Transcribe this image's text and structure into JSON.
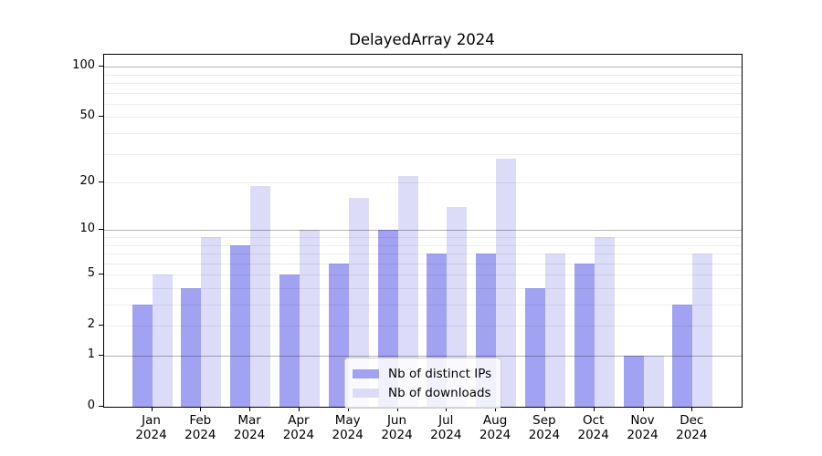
{
  "title": "DelayedArray 2024",
  "chart_data": {
    "type": "bar",
    "title": "DelayedArray 2024",
    "categories": [
      "Jan 2024",
      "Feb 2024",
      "Mar 2024",
      "Apr 2024",
      "May 2024",
      "Jun 2024",
      "Jul 2024",
      "Aug 2024",
      "Sep 2024",
      "Oct 2024",
      "Nov 2024",
      "Dec 2024"
    ],
    "series": [
      {
        "name": "Nb of distinct IPs",
        "color": "#a2a2f2",
        "values": [
          3,
          4,
          8,
          5,
          6,
          10,
          7,
          7,
          4,
          6,
          1,
          3
        ]
      },
      {
        "name": "Nb of downloads",
        "color": "#dcdcf9",
        "values": [
          5,
          9,
          19,
          10,
          16,
          22,
          14,
          28,
          7,
          9,
          1,
          7
        ]
      }
    ],
    "y_scale": "log1p",
    "ylim": [
      0,
      118
    ],
    "y_ticks": [
      0,
      1,
      2,
      5,
      10,
      20,
      50,
      100
    ],
    "grid_major": [
      1,
      10,
      100
    ],
    "grid_minor": [
      2,
      3,
      4,
      5,
      6,
      7,
      8,
      9,
      20,
      30,
      40,
      50,
      60,
      70,
      80,
      90
    ],
    "grid_on": true,
    "legend_position": "lower center",
    "colors": {
      "axis": "#000000",
      "grid_major": "#b4b4b4",
      "grid_minor": "#ececec",
      "legend_border": "#cccccc"
    }
  }
}
